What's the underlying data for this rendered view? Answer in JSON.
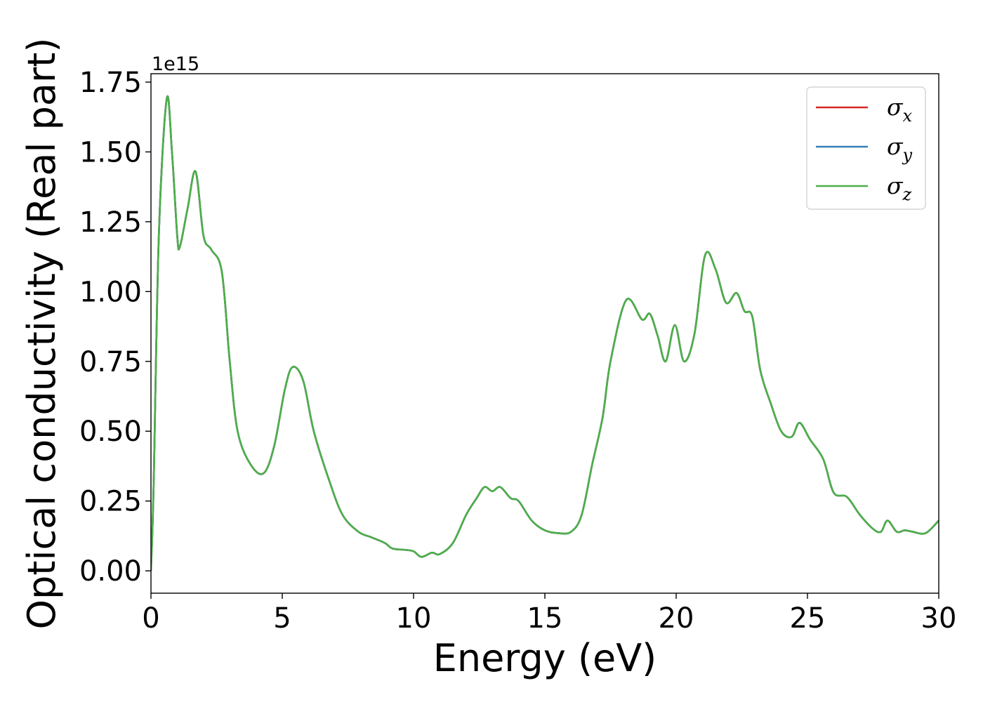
{
  "chart_data": {
    "type": "line",
    "title": "",
    "xlabel": "Energy (eV)",
    "ylabel": "Optical conductivity (Real part)",
    "y_offset_label": "1e15",
    "xlim": [
      0,
      30
    ],
    "ylim": [
      -0.08,
      1.78
    ],
    "x_ticks": [
      0,
      5,
      10,
      15,
      20,
      25,
      30
    ],
    "x_tick_labels": [
      "0",
      "5",
      "10",
      "15",
      "20",
      "25",
      "30"
    ],
    "y_ticks": [
      0.0,
      0.25,
      0.5,
      0.75,
      1.0,
      1.25,
      1.5,
      1.75
    ],
    "y_tick_labels": [
      "0.00",
      "0.25",
      "0.50",
      "0.75",
      "1.00",
      "1.25",
      "1.50",
      "1.75"
    ],
    "grid": false,
    "legend_position": "top-right",
    "series": [
      {
        "name": "σx",
        "symbol": "σ",
        "subscript": "x",
        "color": "#d62728"
      },
      {
        "name": "σy",
        "symbol": "σ",
        "subscript": "y",
        "color": "#377eb8"
      },
      {
        "name": "σz",
        "symbol": "σ",
        "subscript": "z",
        "color": "#4daf4a"
      }
    ],
    "x": [
      0.0,
      0.1,
      0.3,
      0.6,
      0.8,
      1.0,
      1.1,
      1.4,
      1.7,
      2.0,
      2.3,
      2.7,
      3.0,
      3.3,
      3.8,
      4.3,
      4.7,
      5.1,
      5.4,
      5.8,
      6.2,
      6.8,
      7.3,
      7.9,
      8.4,
      8.9,
      9.2,
      9.7,
      10.0,
      10.3,
      10.7,
      11.0,
      11.5,
      12.0,
      12.4,
      12.7,
      13.0,
      13.3,
      13.7,
      14.0,
      14.5,
      15.0,
      15.5,
      16.0,
      16.4,
      16.8,
      17.2,
      17.5,
      18.1,
      18.7,
      19.0,
      19.3,
      19.6,
      19.95,
      20.3,
      20.7,
      21.1,
      21.5,
      21.9,
      22.3,
      22.6,
      22.9,
      23.2,
      23.6,
      24.0,
      24.4,
      24.7,
      25.1,
      25.6,
      26.0,
      26.5,
      27.0,
      27.5,
      27.8,
      28.05,
      28.4,
      28.7,
      29.0,
      29.5,
      30.0
    ],
    "values": [
      0.0,
      0.3,
      1.2,
      1.69,
      1.5,
      1.2,
      1.16,
      1.3,
      1.43,
      1.2,
      1.15,
      1.07,
      0.75,
      0.5,
      0.38,
      0.35,
      0.45,
      0.65,
      0.73,
      0.68,
      0.5,
      0.32,
      0.2,
      0.14,
      0.12,
      0.1,
      0.08,
      0.075,
      0.07,
      0.05,
      0.065,
      0.06,
      0.1,
      0.2,
      0.26,
      0.3,
      0.285,
      0.3,
      0.26,
      0.25,
      0.18,
      0.145,
      0.135,
      0.14,
      0.2,
      0.38,
      0.55,
      0.75,
      0.97,
      0.9,
      0.92,
      0.84,
      0.75,
      0.88,
      0.75,
      0.85,
      1.13,
      1.08,
      0.96,
      0.995,
      0.93,
      0.91,
      0.72,
      0.6,
      0.5,
      0.48,
      0.53,
      0.47,
      0.4,
      0.28,
      0.265,
      0.2,
      0.15,
      0.14,
      0.18,
      0.14,
      0.145,
      0.14,
      0.135,
      0.18
    ]
  }
}
